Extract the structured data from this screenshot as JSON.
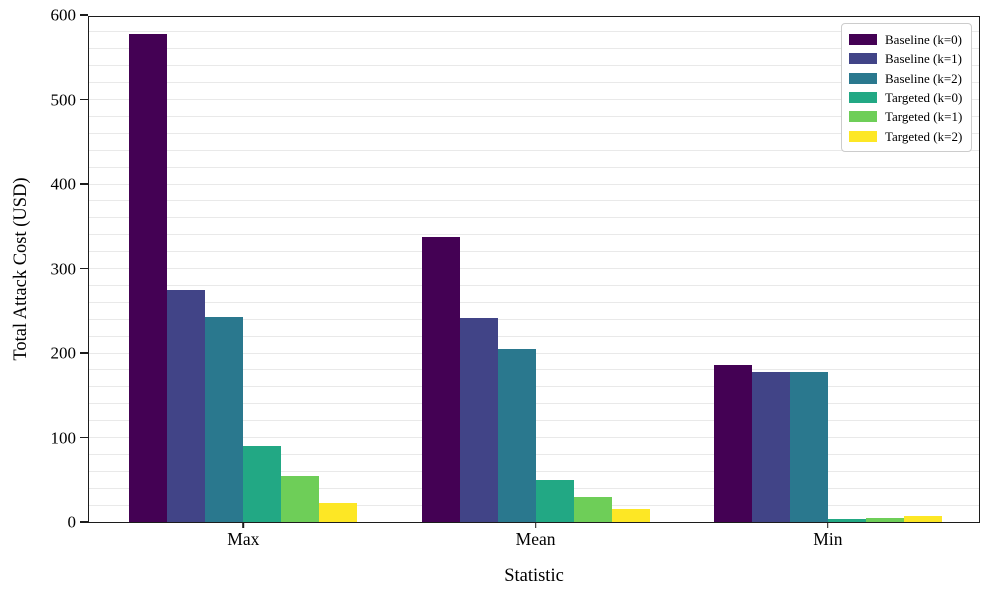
{
  "chart_data": {
    "type": "bar",
    "title": "",
    "xlabel": "Statistic",
    "ylabel": "Total Attack Cost (USD)",
    "categories": [
      "Max",
      "Mean",
      "Min"
    ],
    "series": [
      {
        "name": "Baseline (k=0)",
        "color": "#440154",
        "values": [
          577,
          337,
          186
        ]
      },
      {
        "name": "Baseline (k=1)",
        "color": "#414487",
        "values": [
          275,
          241,
          177
        ]
      },
      {
        "name": "Baseline (k=2)",
        "color": "#2a788e",
        "values": [
          243,
          205,
          177
        ]
      },
      {
        "name": "Targeted (k=0)",
        "color": "#22a884",
        "values": [
          90,
          50,
          4
        ]
      },
      {
        "name": "Targeted (k=1)",
        "color": "#6ece58",
        "values": [
          55,
          30,
          5
        ]
      },
      {
        "name": "Targeted (k=2)",
        "color": "#fde725",
        "values": [
          23,
          15,
          7
        ]
      }
    ],
    "ylim": [
      0,
      600
    ],
    "yticks": [
      0,
      100,
      200,
      300,
      400,
      500,
      600
    ],
    "minor_gridline_step": 20,
    "grid": "horizontal-minor",
    "legend_position": "upper-right"
  }
}
